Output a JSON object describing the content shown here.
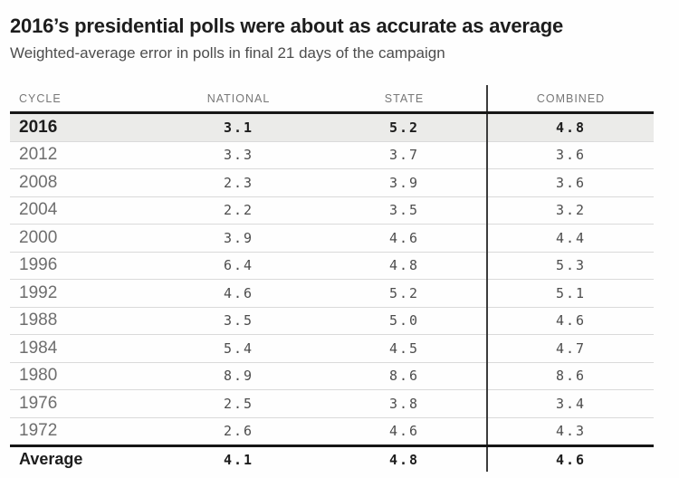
{
  "header": {
    "title": "2016’s presidential polls were about as accurate as average",
    "subtitle": "Weighted-average error in polls in final 21 days of the campaign"
  },
  "chart_data": {
    "type": "table",
    "title": "2016’s presidential polls were about as accurate as average",
    "subtitle": "Weighted-average error in polls in final 21 days of the campaign",
    "columns": [
      "CYCLE",
      "NATIONAL",
      "STATE",
      "COMBINED"
    ],
    "rows": [
      {
        "cycle": "2016",
        "national": "3.1",
        "state": "5.2",
        "combined": "4.8",
        "highlighted": true,
        "emphasis": true
      },
      {
        "cycle": "2012",
        "national": "3.3",
        "state": "3.7",
        "combined": "3.6"
      },
      {
        "cycle": "2008",
        "national": "2.3",
        "state": "3.9",
        "combined": "3.6"
      },
      {
        "cycle": "2004",
        "national": "2.2",
        "state": "3.5",
        "combined": "3.2"
      },
      {
        "cycle": "2000",
        "national": "3.9",
        "state": "4.6",
        "combined": "4.4"
      },
      {
        "cycle": "1996",
        "national": "6.4",
        "state": "4.8",
        "combined": "5.3"
      },
      {
        "cycle": "1992",
        "national": "4.6",
        "state": "5.2",
        "combined": "5.1"
      },
      {
        "cycle": "1988",
        "national": "3.5",
        "state": "5.0",
        "combined": "4.6"
      },
      {
        "cycle": "1984",
        "national": "5.4",
        "state": "4.5",
        "combined": "4.7"
      },
      {
        "cycle": "1980",
        "national": "8.9",
        "state": "8.6",
        "combined": "8.6"
      },
      {
        "cycle": "1976",
        "national": "2.5",
        "state": "3.8",
        "combined": "3.4"
      },
      {
        "cycle": "1972",
        "national": "2.6",
        "state": "4.6",
        "combined": "4.3"
      }
    ],
    "footer_row": {
      "cycle": "Average",
      "national": "4.1",
      "state": "4.8",
      "combined": "4.6",
      "emphasis": true
    },
    "layout": {
      "legend": "none",
      "grid": "horizontal-rules",
      "vertical_rule_before_column": "COMBINED"
    }
  },
  "colors": {
    "title_text": "#1d1d1d",
    "subtitle_text": "#4d4d4d",
    "column_header_text": "#777777",
    "cycle_text": "#6e6e6e",
    "value_text": "#4d4d4d",
    "emphasis_text": "#1d1d1d",
    "highlight_row_bg": "#ebebe9",
    "row_divider": "#dadada",
    "heavy_rule": "#161616",
    "vertical_rule": "#3c3c3c",
    "background": "#fefefe"
  }
}
